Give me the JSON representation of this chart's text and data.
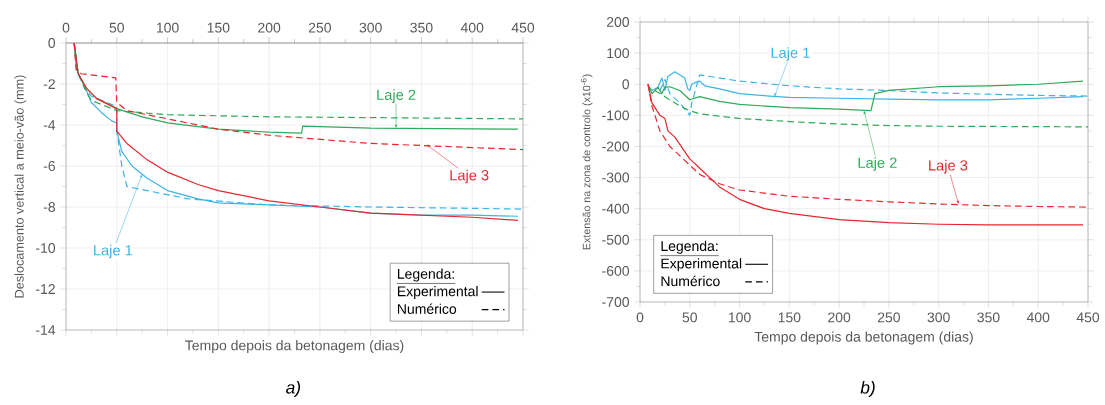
{
  "chart_data": [
    {
      "type": "line",
      "xlabel": "Tempo depois da betonagem (dias)",
      "ylabel": "Deslocamento vertical a meio-vão (mm)",
      "xlim": [
        0,
        450
      ],
      "x2lim": [
        0,
        450
      ],
      "x2ticks": [
        0,
        50,
        100,
        150,
        200,
        250,
        300,
        350,
        400,
        450
      ],
      "ylim": [
        -14,
        0
      ],
      "yticks": [
        -14,
        -12,
        -10,
        -8,
        -6,
        -4,
        -2,
        0
      ],
      "grid": true,
      "marker": "none",
      "legend_title": "Legenda:",
      "series": [
        {
          "color": "#3cb4e5",
          "line_style": "solid",
          "x": [
            8,
            10,
            15,
            20,
            25,
            35,
            45,
            50,
            50,
            55,
            65,
            80,
            100,
            130,
            150,
            200,
            250,
            300,
            350,
            400,
            445
          ],
          "values": [
            0,
            -1.2,
            -1.8,
            -2.3,
            -2.9,
            -3.4,
            -3.8,
            -3.9,
            -4.3,
            -5.3,
            -6.0,
            -6.6,
            -7.2,
            -7.6,
            -7.8,
            -7.9,
            -8.0,
            -8.3,
            -8.4,
            -8.4,
            -8.45
          ]
        },
        {
          "color": "#3cb4e5",
          "line_style": "dashed",
          "x": [
            8,
            12,
            20,
            25,
            50,
            50,
            55,
            60,
            80,
            120,
            200,
            300,
            450
          ],
          "values": [
            0,
            -1.5,
            -2.3,
            -2.6,
            -3.1,
            -4.3,
            -6.0,
            -7.0,
            -7.2,
            -7.6,
            -7.9,
            -8.0,
            -8.1
          ]
        },
        {
          "color": "#2eab5a",
          "line_style": "solid",
          "x": [
            8,
            12,
            20,
            30,
            50,
            75,
            100,
            150,
            200,
            232,
            233,
            300,
            445
          ],
          "values": [
            0,
            -1.5,
            -2.2,
            -2.7,
            -3.2,
            -3.6,
            -3.9,
            -4.2,
            -4.35,
            -4.4,
            -4.05,
            -4.15,
            -4.2
          ]
        },
        {
          "color": "#2eab5a",
          "line_style": "dashed",
          "x": [
            8,
            12,
            20,
            25,
            50,
            100,
            200,
            450
          ],
          "values": [
            0,
            -1.5,
            -2.4,
            -2.8,
            -3.3,
            -3.5,
            -3.6,
            -3.7
          ]
        },
        {
          "color": "#e8262c",
          "line_style": "solid",
          "x": [
            8,
            12,
            20,
            30,
            50,
            50,
            60,
            80,
            100,
            130,
            150,
            200,
            250,
            300,
            350,
            400,
            445
          ],
          "values": [
            0,
            -1.5,
            -2.2,
            -2.7,
            -3.2,
            -4.3,
            -4.9,
            -5.7,
            -6.3,
            -6.9,
            -7.2,
            -7.7,
            -8.0,
            -8.3,
            -8.4,
            -8.5,
            -8.65
          ]
        },
        {
          "color": "#e8262c",
          "line_style": "dashed",
          "x": [
            8,
            10,
            15,
            49,
            50,
            60,
            100,
            150,
            200,
            300,
            450
          ],
          "values": [
            0,
            -1.3,
            -1.5,
            -1.7,
            -2.9,
            -3.3,
            -3.7,
            -4.2,
            -4.5,
            -4.9,
            -5.2
          ]
        }
      ],
      "annotations": [
        {
          "text": "Laje 1",
          "x": 75,
          "y": -6.4
        },
        {
          "text": "Laje 2",
          "x": 325,
          "y": -4.15
        },
        {
          "text": "Laje 3",
          "x": 355,
          "y": -4.95
        },
        "Experimental",
        "Numérico",
        "a)"
      ]
    },
    {
      "type": "line",
      "xlabel": "Tempo depois da betonagem (dias)",
      "ylabel": "Extensão na zona de controlo (x10$^{-6}$)",
      "xlim": [
        0,
        450
      ],
      "xticks": [
        0,
        50,
        100,
        150,
        200,
        250,
        300,
        350,
        400,
        450
      ],
      "ylim": [
        -700,
        200
      ],
      "yticks": [
        -700,
        -600,
        -500,
        -400,
        -300,
        -200,
        -100,
        0,
        100,
        200
      ],
      "grid": true,
      "marker": "none",
      "legend_title": "Legenda:",
      "series": [
        {
          "color": "#3cb4e5",
          "line_style": "solid",
          "x": [
            8,
            12,
            18,
            22,
            25,
            28,
            35,
            45,
            48,
            50,
            52,
            55,
            60,
            65,
            80,
            100,
            130,
            150,
            200,
            250,
            300,
            350,
            400,
            445
          ],
          "values": [
            -5,
            -20,
            -10,
            20,
            -20,
            25,
            40,
            20,
            -15,
            -20,
            0,
            5,
            10,
            -5,
            -15,
            -30,
            -38,
            -42,
            -45,
            -48,
            -50,
            -50,
            -45,
            -40
          ]
        },
        {
          "color": "#3cb4e5",
          "line_style": "dashed",
          "x": [
            20,
            25,
            30,
            40,
            50,
            52,
            60,
            100,
            150,
            200,
            250,
            300,
            350,
            400,
            450
          ],
          "values": [
            -20,
            15,
            -30,
            -60,
            -100,
            -60,
            30,
            10,
            -5,
            -15,
            -20,
            -28,
            -32,
            -36,
            -38
          ]
        },
        {
          "color": "#2eab5a",
          "line_style": "solid",
          "x": [
            8,
            12,
            18,
            22,
            25,
            30,
            40,
            50,
            60,
            80,
            100,
            150,
            200,
            232,
            236,
            250,
            300,
            350,
            400,
            445
          ],
          "values": [
            0,
            -30,
            -10,
            -30,
            -10,
            -8,
            -20,
            -50,
            -40,
            -55,
            -65,
            -75,
            -80,
            -85,
            -30,
            -20,
            -8,
            -5,
            0,
            10
          ]
        },
        {
          "color": "#2eab5a",
          "line_style": "dashed",
          "x": [
            15,
            25,
            40,
            50,
            60,
            100,
            150,
            200,
            250,
            300,
            450
          ],
          "values": [
            -20,
            -40,
            -70,
            -85,
            -95,
            -110,
            -120,
            -128,
            -133,
            -135,
            -137
          ]
        },
        {
          "color": "#e8262c",
          "line_style": "solid",
          "x": [
            8,
            12,
            20,
            25,
            28,
            35,
            50,
            60,
            80,
            100,
            125,
            150,
            200,
            250,
            300,
            350,
            400,
            445
          ],
          "values": [
            0,
            -60,
            -100,
            -110,
            -150,
            -170,
            -240,
            -270,
            -330,
            -370,
            -400,
            -415,
            -435,
            -445,
            -450,
            -452,
            -452,
            -452
          ]
        },
        {
          "color": "#e8262c",
          "line_style": "dashed",
          "x": [
            8,
            12,
            20,
            30,
            50,
            60,
            80,
            100,
            150,
            200,
            250,
            300,
            350,
            400,
            450
          ],
          "values": [
            0,
            -70,
            -150,
            -200,
            -260,
            -290,
            -320,
            -340,
            -360,
            -370,
            -378,
            -385,
            -390,
            -393,
            -395
          ]
        }
      ],
      "annotations": [
        {
          "text": "Laje 1",
          "x": 135,
          "y": -40
        },
        {
          "text": "Laje 2",
          "x": 225,
          "y": -85
        },
        {
          "text": "Laje 3",
          "x": 320,
          "y": -385
        },
        "Experimental",
        "Numérico",
        "b)"
      ]
    }
  ]
}
